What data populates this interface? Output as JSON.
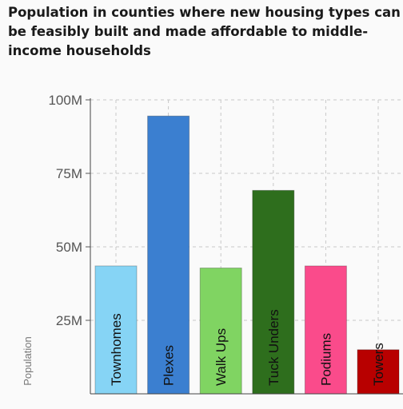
{
  "chart_data": {
    "type": "bar",
    "title": "Population in counties where new housing types can be feasibly built and made affordable to middle-income households",
    "xlabel": "",
    "ylabel": "Population",
    "ylim": [
      0,
      100000000
    ],
    "yticks": [
      {
        "value": 25000000,
        "label": "25M"
      },
      {
        "value": 50000000,
        "label": "50M"
      },
      {
        "value": 75000000,
        "label": "75M"
      },
      {
        "value": 100000000,
        "label": "100M"
      }
    ],
    "grid": true,
    "categories": [
      "Townhomes",
      "Plexes",
      "Walk Ups",
      "Tuck Unders",
      "Podiums",
      "Towers"
    ],
    "values": [
      43500000,
      94500000,
      42800000,
      69200000,
      43500000,
      15000000
    ],
    "colors": [
      "#86d4f5",
      "#3b7fd0",
      "#80d462",
      "#2e6e1d",
      "#fa4b8b",
      "#b80000"
    ],
    "data_labels_inside": true
  }
}
